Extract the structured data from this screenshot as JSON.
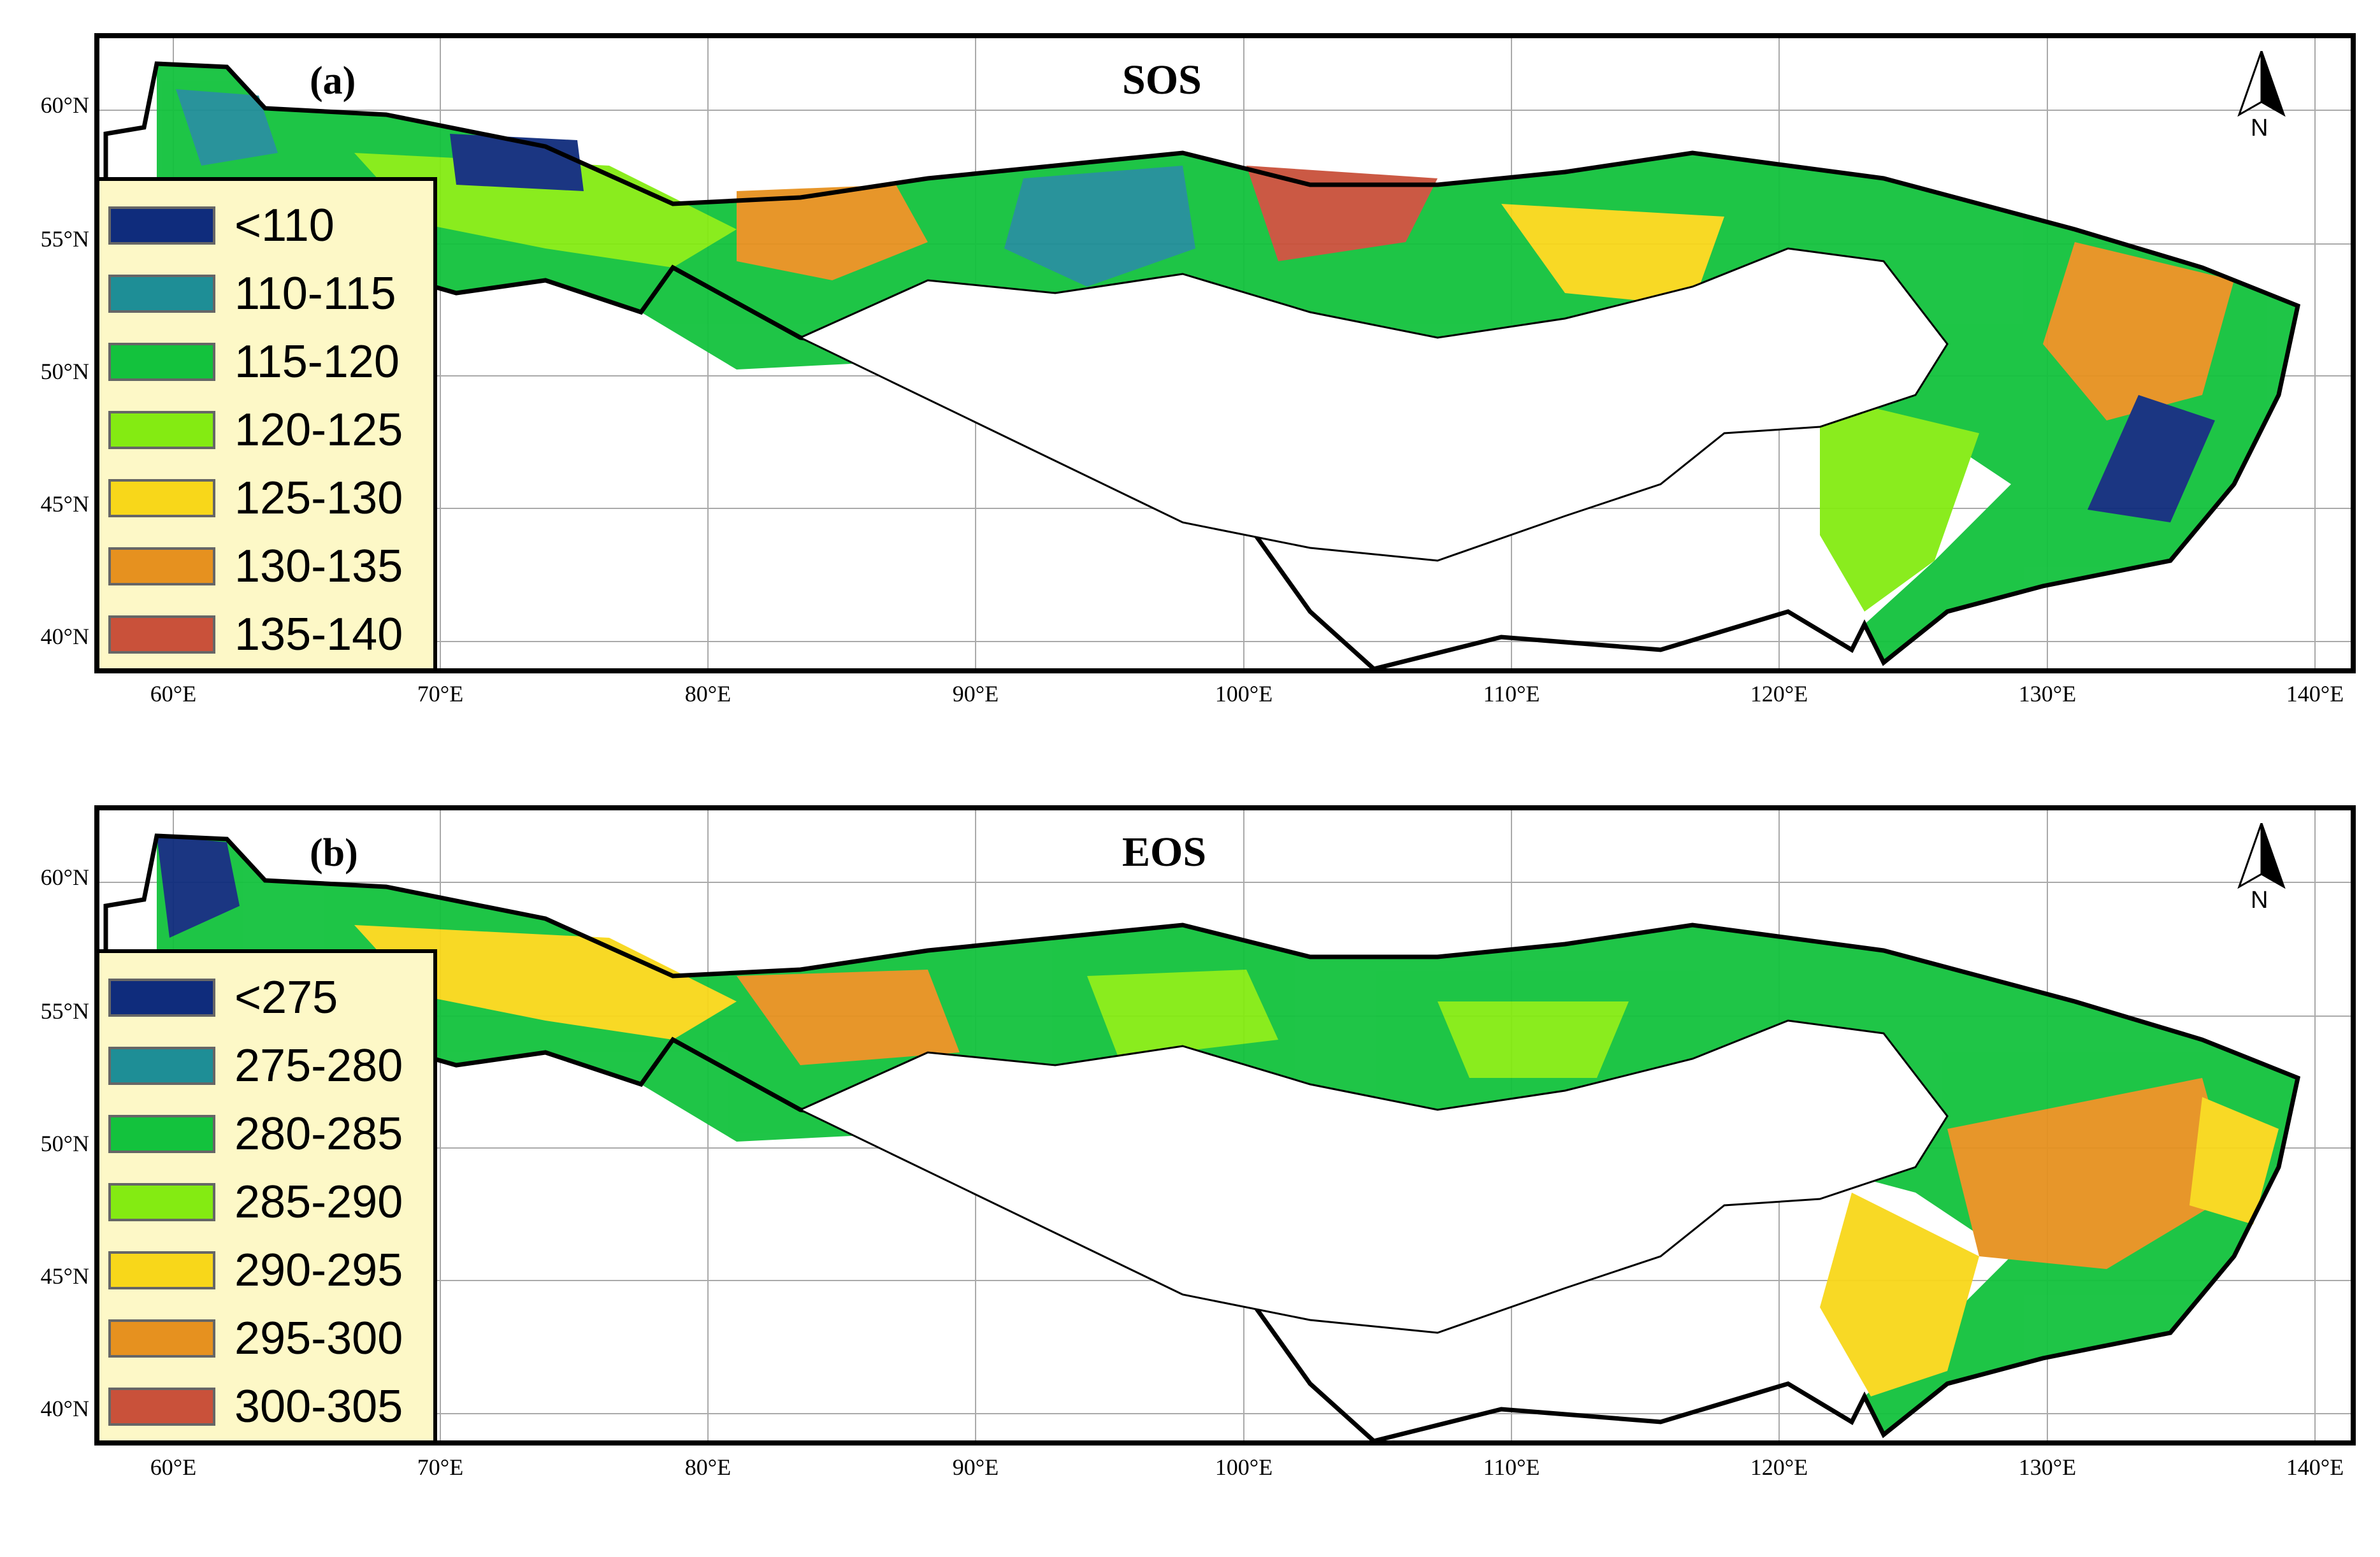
{
  "axes": {
    "lat_labels": [
      "60°N",
      "55°N",
      "50°N",
      "45°N",
      "40°N"
    ],
    "lon_labels": [
      "60°E",
      "70°E",
      "80°E",
      "90°E",
      "100°E",
      "110°E",
      "120°E",
      "130°E",
      "140°E"
    ]
  },
  "panels": [
    {
      "tag": "(a)",
      "title": "SOS",
      "north": "N",
      "legend": [
        {
          "label": "<110",
          "color": "#0f2c7c"
        },
        {
          "label": "110-115",
          "color": "#1e8e96"
        },
        {
          "label": "115-120",
          "color": "#13c23d"
        },
        {
          "label": "120-125",
          "color": "#84eb12"
        },
        {
          "label": "125-130",
          "color": "#f8d71a"
        },
        {
          "label": "130-135",
          "color": "#e6911f"
        },
        {
          "label": "135-140",
          "color": "#c9513a"
        }
      ]
    },
    {
      "tag": "(b)",
      "title": "EOS",
      "north": "N",
      "legend": [
        {
          "label": "<275",
          "color": "#0f2c7c"
        },
        {
          "label": "275-280",
          "color": "#1e8e96"
        },
        {
          "label": "280-285",
          "color": "#13c23d"
        },
        {
          "label": "285-290",
          "color": "#84eb12"
        },
        {
          "label": "290-295",
          "color": "#f8d71a"
        },
        {
          "label": "295-300",
          "color": "#e6911f"
        },
        {
          "label": "300-305",
          "color": "#c9513a"
        }
      ]
    }
  ]
}
